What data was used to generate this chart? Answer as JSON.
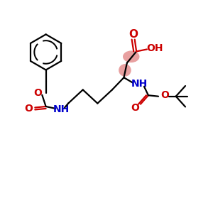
{
  "bg_color": "#ffffff",
  "O_color": "#cc0000",
  "N_color": "#0000cc",
  "C_color": "#000000",
  "highlight_color": "#e8a0a0",
  "lw": 1.6,
  "figsize": [
    3.0,
    3.0
  ],
  "dpi": 100,
  "xlim": [
    0,
    10
  ],
  "ylim": [
    0,
    10
  ]
}
